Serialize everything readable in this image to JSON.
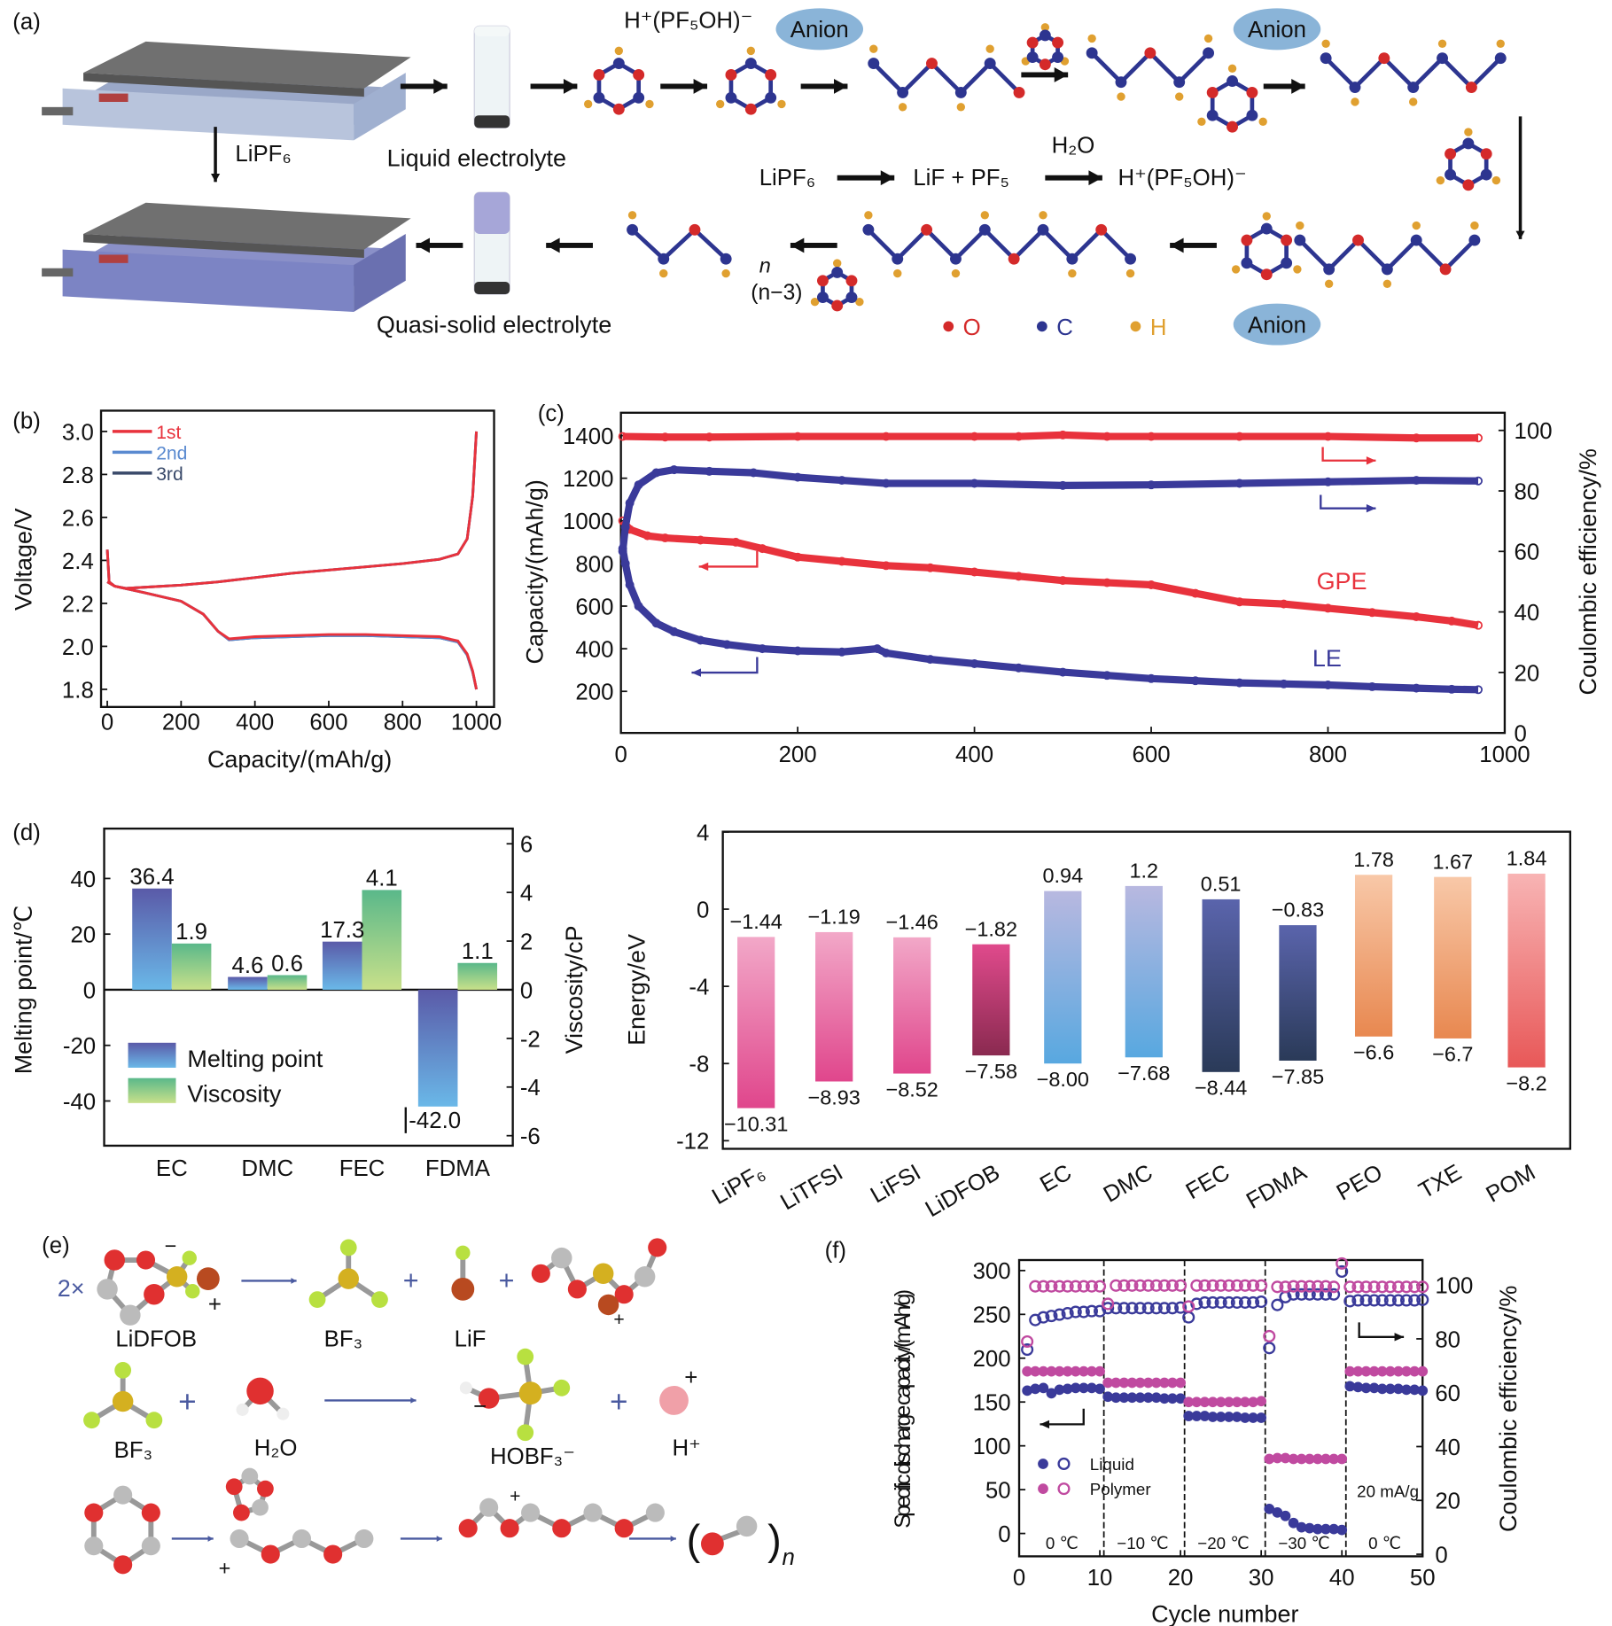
{
  "panel_labels": [
    "(a)",
    "(b)",
    "(c)",
    "(d)",
    "(e)",
    "(f)"
  ],
  "schematic_a": {
    "top_formula": "H⁺(PF₅OH)⁻",
    "anion": "Anion",
    "lipf6_arrow": "LiPF₆",
    "liquid_electrolyte": "Liquid electrolyte",
    "water": "H₂O",
    "reaction": [
      "LiPF₆",
      "LiF + PF₅",
      "H⁺(PF₅OH)⁻"
    ],
    "quasi_solid": "Quasi-solid electrolyte",
    "n": "n",
    "n_minus_3": "(n−3)",
    "legend": [
      {
        "label": "O",
        "color": "#d42a2a"
      },
      {
        "label": "C",
        "color": "#2d3590"
      },
      {
        "label": "H",
        "color": "#e0a030"
      }
    ]
  },
  "scheme_e": {
    "coef": "2×",
    "labels": [
      "LiDFOB",
      "BF₃",
      "LiF",
      "BF₃",
      "H₂O",
      "HOBF₃⁻",
      "H⁺"
    ],
    "plus": "+",
    "minus": "−",
    "n": "n"
  },
  "chart_data": [
    {
      "type": "line",
      "panel": "b",
      "xlabel": "Capacity/(mAh/g)",
      "ylabel": "Voltage/V",
      "xticks": [
        "0",
        "200",
        "400",
        "600",
        "800",
        "1000"
      ],
      "yticks": [
        "1.8",
        "2.0",
        "2.2",
        "2.4",
        "2.6",
        "2.8",
        "3.0"
      ],
      "xlim": [
        -17,
        1048
      ],
      "ylim": [
        1.72,
        3.1
      ],
      "legend_placement": "top-left",
      "series": [
        {
          "name": "1st",
          "color": "#e8323c",
          "charge": {
            "x": [
              0,
              20,
              50,
              100,
              200,
              300,
              400,
              500,
              600,
              700,
              800,
              900,
              950,
              975,
              990,
              1000
            ],
            "y": [
              2.3,
              2.28,
              2.27,
              2.275,
              2.285,
              2.3,
              2.32,
              2.34,
              2.355,
              2.37,
              2.385,
              2.405,
              2.43,
              2.5,
              2.7,
              3.0
            ]
          },
          "discharge": {
            "x": [
              0,
              5,
              20,
              100,
              200,
              260,
              300,
              330,
              400,
              500,
              600,
              700,
              800,
              900,
              950,
              975,
              990,
              1000
            ],
            "y": [
              2.45,
              2.3,
              2.28,
              2.25,
              2.21,
              2.15,
              2.07,
              2.035,
              2.045,
              2.05,
              2.055,
              2.055,
              2.05,
              2.045,
              2.025,
              1.965,
              1.885,
              1.8
            ]
          }
        },
        {
          "name": "2nd",
          "color": "#5a8ad0",
          "charge": {
            "x": [
              0,
              20,
              50,
              100,
              200,
              300,
              400,
              500,
              600,
              700,
              800,
              900,
              950,
              975,
              990,
              1000
            ],
            "y": [
              2.3,
              2.28,
              2.27,
              2.275,
              2.285,
              2.3,
              2.32,
              2.34,
              2.355,
              2.37,
              2.385,
              2.405,
              2.43,
              2.5,
              2.7,
              3.0
            ]
          },
          "discharge": {
            "x": [
              0,
              5,
              20,
              100,
              200,
              260,
              300,
              330,
              400,
              500,
              600,
              700,
              800,
              900,
              950,
              975,
              990,
              1000
            ],
            "y": [
              2.45,
              2.3,
              2.28,
              2.25,
              2.21,
              2.15,
              2.07,
              2.03,
              2.04,
              2.045,
              2.05,
              2.05,
              2.045,
              2.04,
              2.02,
              1.96,
              1.88,
              1.8
            ]
          }
        },
        {
          "name": "3rd",
          "color": "#3a4a6a",
          "charge": {
            "x": [
              0,
              20,
              50,
              100,
              200,
              300,
              400,
              500,
              600,
              700,
              800,
              900,
              950,
              975,
              990,
              1000
            ],
            "y": [
              2.3,
              2.28,
              2.27,
              2.275,
              2.285,
              2.3,
              2.32,
              2.34,
              2.355,
              2.37,
              2.385,
              2.405,
              2.43,
              2.5,
              2.7,
              3.0
            ]
          },
          "discharge": {
            "x": [
              0,
              5,
              20,
              100,
              200,
              260,
              300,
              330,
              400,
              500,
              600,
              700,
              800,
              900,
              950,
              975,
              990,
              1000
            ],
            "y": [
              2.45,
              2.3,
              2.28,
              2.25,
              2.21,
              2.15,
              2.07,
              2.03,
              2.04,
              2.045,
              2.05,
              2.05,
              2.045,
              2.04,
              2.02,
              1.96,
              1.88,
              1.8
            ]
          }
        }
      ]
    },
    {
      "type": "scatter",
      "panel": "c",
      "xlabel": "",
      "ylabel": "Capacity/(mAh/g)",
      "y2label": "Coulombic efficiency/%",
      "xticks": [
        "0",
        "200",
        "400",
        "600",
        "800",
        "1000"
      ],
      "yticks": [
        "200",
        "400",
        "600",
        "800",
        "1000",
        "1200",
        "1400"
      ],
      "y2ticks": [
        "0",
        "20",
        "40",
        "60",
        "80",
        "100"
      ],
      "xlim": [
        0,
        1000
      ],
      "ylim": [
        0,
        1507
      ],
      "y2lim": [
        0,
        105.8
      ],
      "annotations": [
        "GPE",
        "LE"
      ],
      "series": [
        {
          "label": "GPE",
          "axis": "left",
          "color": "#e8323c",
          "x": [
            2,
            10,
            30,
            50,
            90,
            130,
            160,
            200,
            250,
            300,
            350,
            400,
            450,
            500,
            550,
            600,
            650,
            700,
            750,
            800,
            850,
            900,
            940,
            970
          ],
          "y": [
            1000,
            960,
            930,
            920,
            910,
            900,
            870,
            830,
            810,
            790,
            780,
            760,
            740,
            720,
            710,
            700,
            660,
            620,
            610,
            590,
            570,
            550,
            530,
            510
          ]
        },
        {
          "label": "LE",
          "axis": "left",
          "color": "#3a3a9a",
          "x": [
            2,
            5,
            10,
            20,
            40,
            60,
            90,
            120,
            160,
            200,
            250,
            290,
            300,
            350,
            400,
            450,
            500,
            550,
            600,
            650,
            700,
            750,
            800,
            850,
            900,
            940,
            970
          ],
          "y": [
            870,
            800,
            700,
            600,
            520,
            480,
            440,
            420,
            400,
            390,
            385,
            400,
            380,
            350,
            330,
            310,
            290,
            275,
            260,
            250,
            240,
            235,
            230,
            222,
            215,
            210,
            208
          ]
        },
        {
          "label": "GPE",
          "axis": "right",
          "color": "#e8323c",
          "x": [
            2,
            50,
            100,
            200,
            300,
            400,
            450,
            500,
            550,
            600,
            700,
            800,
            900,
            970
          ],
          "y": [
            98,
            97.8,
            97.8,
            98,
            98,
            98,
            98,
            98.5,
            98,
            98,
            98,
            98,
            97.5,
            97.5
          ]
        },
        {
          "label": "LE",
          "axis": "right",
          "color": "#3a3a9a",
          "x": [
            2,
            5,
            10,
            20,
            40,
            60,
            100,
            150,
            200,
            250,
            300,
            400,
            500,
            600,
            700,
            800,
            900,
            970
          ],
          "y": [
            60,
            68,
            76,
            82,
            86,
            87,
            86.5,
            86,
            84.5,
            83.5,
            82.5,
            82.5,
            81.8,
            82,
            82.5,
            83,
            83.5,
            83.3
          ]
        }
      ]
    },
    {
      "type": "bar",
      "panel": "d-left",
      "ylabel": "Melting point/℃",
      "y2label": "Viscosity/cP",
      "categories": [
        "EC",
        "DMC",
        "FEC",
        "FDMA"
      ],
      "yticks": [
        "-40",
        "-20",
        "0",
        "20",
        "40"
      ],
      "y2ticks": [
        "-6",
        "-4",
        "-2",
        "0",
        "2",
        "4",
        "6"
      ],
      "ylim": [
        -56,
        58
      ],
      "y2lim": [
        -6.4,
        6.4
      ],
      "legend_placement": "bottom-left",
      "series": [
        {
          "name": "Melting point",
          "axis": "left",
          "values": [
            36.4,
            4.6,
            17.3,
            -42.0
          ],
          "labels": [
            "36.4",
            "4.6",
            "17.3",
            "-42.0"
          ],
          "colors": [
            "#5a5aa8",
            "#6ab8e8"
          ]
        },
        {
          "name": "Viscosity",
          "axis": "right",
          "values": [
            1.9,
            0.6,
            4.1,
            1.1
          ],
          "labels": [
            "1.9",
            "0.6",
            "4.1",
            "1.1"
          ],
          "colors": [
            "#5ab88a",
            "#c8e08a"
          ]
        }
      ]
    },
    {
      "type": "bar",
      "panel": "d-right",
      "ylabel": "Energy/eV",
      "categories": [
        "LiPF₆",
        "LiTFSI",
        "LiFSI",
        "LiDFOB",
        "EC",
        "DMC",
        "FEC",
        "FDMA",
        "PEO",
        "TXE",
        "POM"
      ],
      "yticks": [
        "-12",
        "-8",
        "-4",
        "0",
        "4"
      ],
      "ylim": [
        -12.4,
        4
      ],
      "top": [
        -1.44,
        -1.19,
        -1.46,
        -1.82,
        0.94,
        1.2,
        0.51,
        -0.83,
        1.78,
        1.67,
        1.84
      ],
      "bottom": [
        -10.31,
        -8.93,
        -8.52,
        -7.58,
        -8.0,
        -7.68,
        -8.44,
        -7.85,
        -6.6,
        -6.7,
        -8.2
      ],
      "top_labels": [
        "−1.44",
        "−1.19",
        "−1.46",
        "−1.82",
        "0.94",
        "1.2",
        "0.51",
        "−0.83",
        "1.78",
        "1.67",
        "1.84"
      ],
      "bottom_labels": [
        "−10.31",
        "−8.93",
        "−8.52",
        "−7.58",
        "−8.00",
        "−7.68",
        "−8.44",
        "−7.85",
        "−6.6",
        "−6.7",
        "−8.2"
      ],
      "colors": [
        [
          "#f2a8c8",
          "#e0468c"
        ],
        [
          "#f2a8c8",
          "#e0468c"
        ],
        [
          "#f2a8c8",
          "#e0468c"
        ],
        [
          "#e04a8c",
          "#8a2a50"
        ],
        [
          "#b8b8e0",
          "#58a8e0"
        ],
        [
          "#b8b8e0",
          "#58a8e0"
        ],
        [
          "#5a64ac",
          "#2a3a58"
        ],
        [
          "#5a64ac",
          "#2a3a58"
        ],
        [
          "#f8c8a8",
          "#e88850"
        ],
        [
          "#f8c8a8",
          "#e88850"
        ],
        [
          "#f8b4b4",
          "#e85858"
        ]
      ]
    },
    {
      "type": "scatter",
      "panel": "f",
      "xlabel": "Cycle number",
      "ylabel": "Specific discharge capacity/(mAh/g)",
      "y2label": "Coulombic efficiency/%",
      "xticks": [
        "0",
        "10",
        "20",
        "30",
        "40",
        "50"
      ],
      "yticks": [
        "0",
        "50",
        "100",
        "150",
        "200",
        "250",
        "300"
      ],
      "y2ticks": [
        "0",
        "20",
        "40",
        "60",
        "80",
        "100"
      ],
      "xlim": [
        0,
        50
      ],
      "ylim": [
        -24,
        314
      ],
      "y2lim": [
        0,
        109
      ],
      "temperatures": [
        "0 ℃",
        "−10 ℃",
        "−20 ℃",
        "−30 ℃",
        "0 ℃"
      ],
      "current": "20 mA/g",
      "legend": [
        "Liquid",
        "Polymer"
      ],
      "colors": {
        "liquid": "#3a3a9a",
        "polymer": "#c04aa0"
      },
      "series": [
        {
          "name": "Liquid",
          "kind": "capacity",
          "values": [
            163,
            165,
            166,
            160,
            164,
            165,
            166,
            166,
            166,
            165,
            156,
            155,
            155,
            155,
            155,
            155,
            155,
            154,
            154,
            154,
            134,
            134,
            134,
            133,
            133,
            133,
            133,
            132,
            132,
            132,
            28,
            24,
            20,
            12,
            7,
            6,
            5,
            5,
            5,
            4,
            168,
            167,
            166,
            166,
            165,
            165,
            165,
            164,
            164,
            163
          ]
        },
        {
          "name": "Polymer",
          "kind": "capacity",
          "values": [
            185,
            185,
            185,
            185,
            185,
            185,
            185,
            185,
            185,
            185,
            172,
            172,
            172,
            172,
            172,
            172,
            172,
            172,
            172,
            172,
            150,
            150,
            150,
            150,
            150,
            150,
            150,
            150,
            150,
            151,
            85,
            86,
            86,
            85,
            85,
            85,
            85,
            85,
            85,
            85,
            185,
            185,
            185,
            185,
            185,
            185,
            185,
            185,
            185,
            185
          ]
        },
        {
          "name": "Liquid",
          "kind": "efficiency",
          "values": [
            76,
            87,
            88,
            88.5,
            89,
            89.5,
            90,
            90,
            90.3,
            90.3,
            91.4,
            91.4,
            91.4,
            91.4,
            91.4,
            91.4,
            91.4,
            91.4,
            91.4,
            91.6,
            88,
            93,
            93.5,
            93.5,
            93.5,
            93.5,
            93.5,
            93.5,
            93.5,
            93.8,
            76.6,
            92.6,
            95.5,
            96.5,
            96.5,
            96.5,
            96.5,
            96.5,
            96.5,
            105,
            94,
            94.3,
            94.3,
            94.3,
            94.3,
            94.3,
            94.3,
            94.3,
            94.3,
            94.5
          ]
        },
        {
          "name": "Polymer",
          "kind": "efficiency",
          "values": [
            79,
            99.5,
            99.5,
            99.5,
            99.5,
            99.5,
            99.5,
            99.5,
            99.5,
            99.5,
            93,
            99.8,
            99.8,
            99.8,
            99.8,
            99.8,
            99.8,
            99.8,
            99.8,
            99.8,
            92,
            99.8,
            99.8,
            99.8,
            99.8,
            99.8,
            99.8,
            99.8,
            99.8,
            99.8,
            81,
            99.3,
            99.3,
            99.5,
            99.5,
            99.5,
            99.5,
            99.5,
            99.3,
            108,
            99.3,
            99.3,
            99.3,
            99.3,
            99.3,
            99.3,
            99.3,
            99.3,
            99.3,
            99.3
          ]
        }
      ]
    }
  ]
}
